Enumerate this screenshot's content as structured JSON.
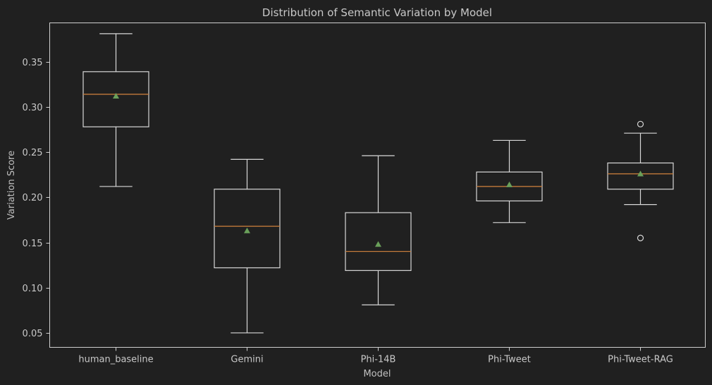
{
  "chart_data": {
    "type": "box",
    "title": "Distribution of Semantic Variation by Model",
    "xlabel": "Model",
    "ylabel": "Variation Score",
    "ylim": [
      0.034,
      0.393
    ],
    "yticks": [
      0.05,
      0.1,
      0.15,
      0.2,
      0.25,
      0.3,
      0.35
    ],
    "ytick_labels": [
      "0.05",
      "0.10",
      "0.15",
      "0.20",
      "0.25",
      "0.30",
      "0.35"
    ],
    "grid": false,
    "categories": [
      "human_baseline",
      "Gemini",
      "Phi-14B",
      "Phi-Tweet",
      "Phi-Tweet-RAG"
    ],
    "boxes": [
      {
        "name": "human_baseline",
        "whisker_low": 0.212,
        "q1": 0.278,
        "median": 0.314,
        "q3": 0.339,
        "whisker_high": 0.381,
        "mean": 0.312,
        "fliers": []
      },
      {
        "name": "Gemini",
        "whisker_low": 0.05,
        "q1": 0.122,
        "median": 0.168,
        "q3": 0.209,
        "whisker_high": 0.242,
        "mean": 0.163,
        "fliers": []
      },
      {
        "name": "Phi-14B",
        "whisker_low": 0.081,
        "q1": 0.119,
        "median": 0.14,
        "q3": 0.183,
        "whisker_high": 0.246,
        "mean": 0.148,
        "fliers": []
      },
      {
        "name": "Phi-Tweet",
        "whisker_low": 0.172,
        "q1": 0.196,
        "median": 0.212,
        "q3": 0.228,
        "whisker_high": 0.263,
        "mean": 0.214,
        "fliers": []
      },
      {
        "name": "Phi-Tweet-RAG",
        "whisker_low": 0.192,
        "q1": 0.209,
        "median": 0.226,
        "q3": 0.238,
        "whisker_high": 0.271,
        "mean": 0.226,
        "fliers": [
          0.281,
          0.155
        ]
      }
    ],
    "colors": {
      "background": "#202020",
      "box": "#d8d8d8",
      "median": "#c27a3a",
      "mean": "#6aa05a",
      "text": "#c8c8c8"
    }
  }
}
